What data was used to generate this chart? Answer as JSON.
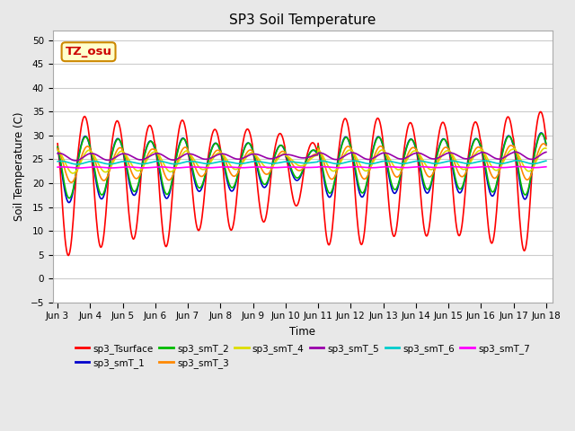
{
  "title": "SP3 Soil Temperature",
  "ylabel": "Soil Temperature (C)",
  "xlabel": "Time",
  "ylim": [
    -5,
    52
  ],
  "yticks": [
    -5,
    0,
    5,
    10,
    15,
    20,
    25,
    30,
    35,
    40,
    45,
    50
  ],
  "fig_bg_color": "#e8e8e8",
  "plot_bg_color": "#ffffff",
  "annotation_text": "TZ_osu",
  "annotation_color": "#cc0000",
  "annotation_bg": "#ffffcc",
  "annotation_border": "#cc8800",
  "series_colors": {
    "sp3_Tsurface": "#ff0000",
    "sp3_smT_1": "#0000cc",
    "sp3_smT_2": "#00bb00",
    "sp3_smT_3": "#ff8800",
    "sp3_smT_4": "#dddd00",
    "sp3_smT_5": "#9900aa",
    "sp3_smT_6": "#00cccc",
    "sp3_smT_7": "#ff00ff"
  },
  "legend_colors": [
    "#ff0000",
    "#0000cc",
    "#00bb00",
    "#ff8800",
    "#dddd00",
    "#9900aa",
    "#00cccc",
    "#ff00ff"
  ],
  "legend_labels": [
    "sp3_Tsurface",
    "sp3_smT_1",
    "sp3_smT_2",
    "sp3_smT_3",
    "sp3_smT_4",
    "sp3_smT_5",
    "sp3_smT_6",
    "sp3_smT_7"
  ],
  "x_tick_labels": [
    "Jun 3",
    "Jun 4",
    "Jun 5",
    "Jun 6",
    "Jun 7",
    "Jun 8",
    "Jun 9",
    "Jun 10",
    "Jun 11",
    "Jun 12",
    "Jun 13",
    "Jun 14",
    "Jun 15",
    "Jun 16",
    "Jun 17",
    "Jun 18"
  ],
  "amp_surface": [
    11,
    10,
    9,
    10,
    8,
    8,
    7,
    5,
    10,
    10,
    9,
    9,
    9,
    10,
    11
  ],
  "base_surface": 23.0,
  "lw": 1.2
}
